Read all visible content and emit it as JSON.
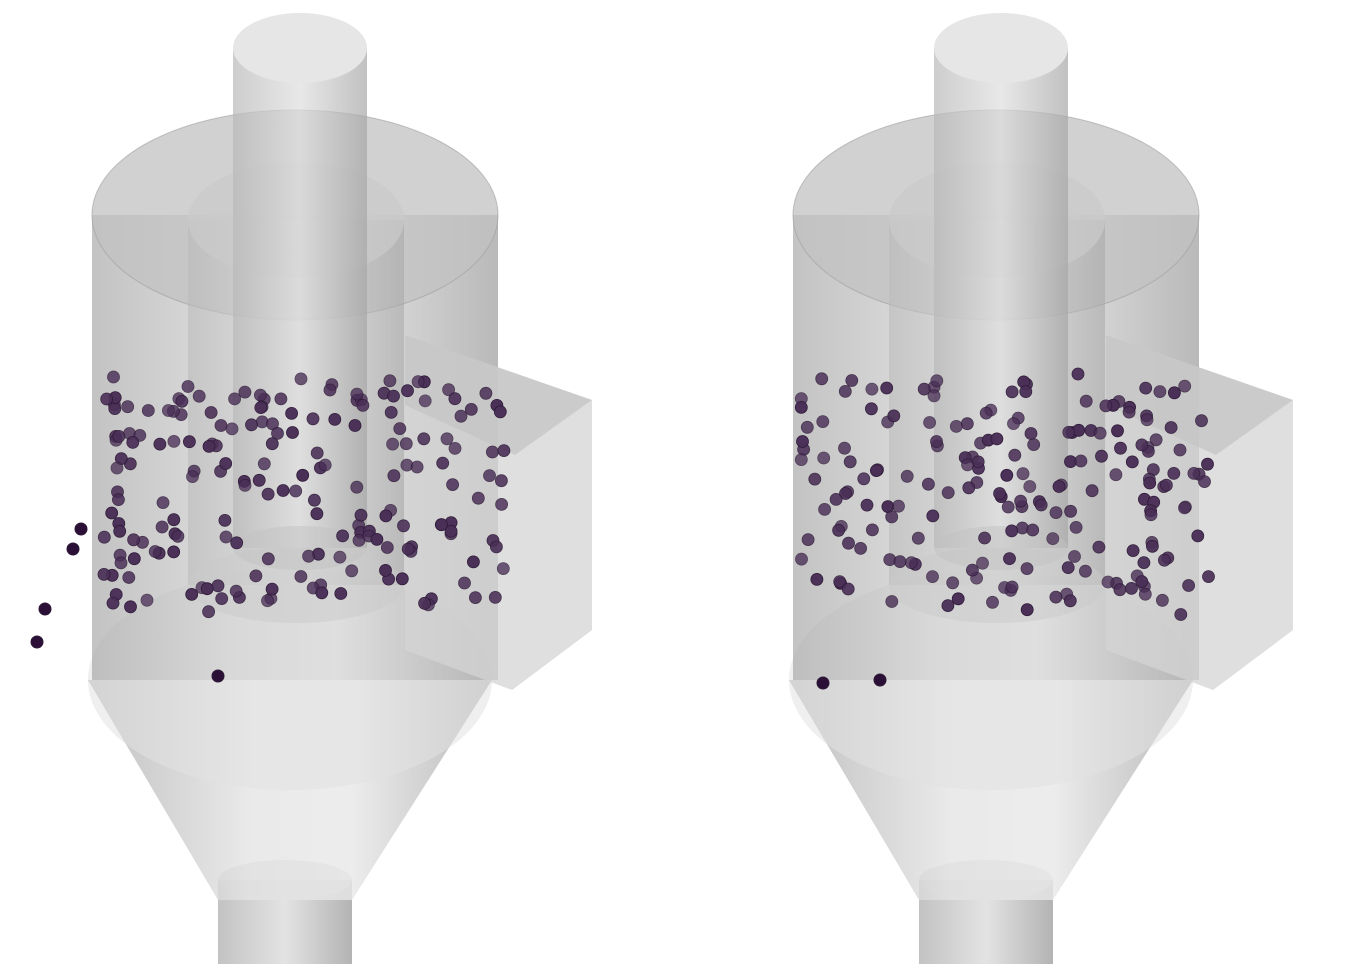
{
  "scene": {
    "background": "#ffffff",
    "glass_color": "#b4b4b4",
    "glass_edge_color": "#8c8c8c",
    "particle_color": "#4a2f57",
    "particle_outline": "#2e1a38",
    "panels": [
      {
        "name": "cyclone-left"
      },
      {
        "name": "cyclone-right"
      }
    ]
  }
}
